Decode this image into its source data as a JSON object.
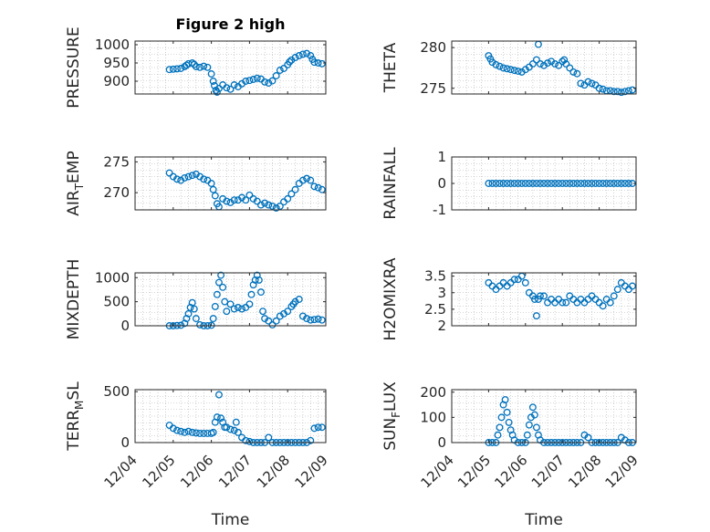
{
  "figure": {
    "title": "Figure 2 high",
    "xlabel": "Time"
  },
  "colors": {
    "series": "#0072BD",
    "axis": "#262626",
    "grid": "#b0b0b0"
  },
  "chart_data": [
    {
      "type": "scatter",
      "ylabel": "PRESSURE",
      "title": "Figure 2 high",
      "marker": "circle",
      "grid": "minor dotted",
      "xlim": [
        "12/04",
        "12/09"
      ],
      "ylim": [
        865,
        1010
      ],
      "yticks": [
        "900",
        "950",
        "1000"
      ],
      "x": [
        4.9,
        5.0,
        5.1,
        5.2,
        5.3,
        5.35,
        5.4,
        5.5,
        5.55,
        5.6,
        5.7,
        5.8,
        5.9,
        6.0,
        6.05,
        6.08,
        6.12,
        6.15,
        6.2,
        6.3,
        6.4,
        6.5,
        6.6,
        6.7,
        6.8,
        6.9,
        7.0,
        7.1,
        7.2,
        7.3,
        7.4,
        7.5,
        7.6,
        7.7,
        7.8,
        7.9,
        8.0,
        8.05,
        8.1,
        8.2,
        8.3,
        8.4,
        8.5,
        8.6,
        8.65,
        8.7,
        8.8,
        8.9
      ],
      "y": [
        932,
        933,
        934,
        935,
        940,
        944,
        948,
        950,
        946,
        940,
        938,
        941,
        938,
        920,
        900,
        888,
        875,
        870,
        880,
        890,
        882,
        878,
        890,
        885,
        893,
        900,
        902,
        905,
        908,
        906,
        898,
        895,
        901,
        915,
        930,
        935,
        945,
        953,
        958,
        965,
        970,
        974,
        976,
        970,
        960,
        952,
        950,
        948
      ]
    },
    {
      "type": "scatter",
      "ylabel": "THETA",
      "marker": "circle",
      "grid": "minor dotted",
      "xlim": [
        "12/04",
        "12/09"
      ],
      "ylim": [
        274.3,
        280.8
      ],
      "yticks": [
        "275",
        "280"
      ],
      "x": [
        5.0,
        5.05,
        5.1,
        5.2,
        5.3,
        5.4,
        5.5,
        5.6,
        5.7,
        5.8,
        5.9,
        6.0,
        6.1,
        6.2,
        6.3,
        6.35,
        6.4,
        6.5,
        6.6,
        6.7,
        6.8,
        6.9,
        7.0,
        7.05,
        7.1,
        7.2,
        7.3,
        7.4,
        7.5,
        7.6,
        7.7,
        7.8,
        7.9,
        8.0,
        8.1,
        8.2,
        8.3,
        8.4,
        8.5,
        8.6,
        8.7,
        8.8,
        8.9
      ],
      "y": [
        279.0,
        278.6,
        278.2,
        277.9,
        277.7,
        277.5,
        277.4,
        277.3,
        277.2,
        277.1,
        277.0,
        277.3,
        277.6,
        278.0,
        278.5,
        280.4,
        278.0,
        277.8,
        278.1,
        278.3,
        278.0,
        277.8,
        278.3,
        278.5,
        278.0,
        277.5,
        277.0,
        276.8,
        275.6,
        275.4,
        275.8,
        275.6,
        275.4,
        275.0,
        274.9,
        274.7,
        274.7,
        274.6,
        274.6,
        274.5,
        274.6,
        274.7,
        274.8
      ]
    },
    {
      "type": "scatter",
      "ylabel": "AIR_TEMP",
      "ylabel_main": "AIR",
      "ylabel_sub": "T",
      "ylabel_rest": "EMP",
      "marker": "circle",
      "grid": "minor dotted",
      "xlim": [
        "12/04",
        "12/09"
      ],
      "ylim": [
        267.2,
        275.8
      ],
      "yticks": [
        "270",
        "275"
      ],
      "x": [
        4.9,
        5.0,
        5.1,
        5.2,
        5.3,
        5.4,
        5.5,
        5.6,
        5.7,
        5.8,
        5.9,
        6.0,
        6.05,
        6.1,
        6.15,
        6.2,
        6.3,
        6.4,
        6.5,
        6.6,
        6.7,
        6.8,
        6.9,
        7.0,
        7.1,
        7.2,
        7.3,
        7.4,
        7.5,
        7.6,
        7.7,
        7.8,
        7.9,
        8.0,
        8.1,
        8.2,
        8.3,
        8.4,
        8.5,
        8.6,
        8.7,
        8.8,
        8.9
      ],
      "y": [
        273.2,
        272.6,
        272.2,
        272.0,
        272.4,
        272.6,
        272.8,
        273.0,
        272.6,
        272.2,
        272.0,
        271.5,
        270.5,
        269.5,
        268.2,
        267.7,
        269.0,
        268.6,
        268.4,
        268.8,
        268.8,
        269.2,
        268.8,
        269.6,
        269.0,
        268.6,
        268.0,
        268.3,
        268.0,
        267.8,
        267.5,
        267.8,
        268.5,
        269.0,
        269.8,
        270.5,
        271.5,
        272.0,
        272.3,
        272.0,
        271.0,
        270.8,
        270.5
      ]
    },
    {
      "type": "scatter",
      "ylabel": "RAINFALL",
      "marker": "circle",
      "grid": "minor dotted",
      "xlim": [
        "12/04",
        "12/09"
      ],
      "ylim": [
        -1,
        1
      ],
      "yticks": [
        "-1",
        "0",
        "1"
      ],
      "x": [
        5.0,
        5.1,
        5.2,
        5.3,
        5.4,
        5.5,
        5.6,
        5.7,
        5.8,
        5.9,
        6.0,
        6.1,
        6.2,
        6.3,
        6.4,
        6.5,
        6.6,
        6.7,
        6.8,
        6.9,
        7.0,
        7.1,
        7.2,
        7.3,
        7.4,
        7.5,
        7.6,
        7.7,
        7.8,
        7.9,
        8.0,
        8.1,
        8.2,
        8.3,
        8.4,
        8.5,
        8.6,
        8.7,
        8.8,
        8.9
      ],
      "y": [
        0,
        0,
        0,
        0,
        0,
        0,
        0,
        0,
        0,
        0,
        0,
        0,
        0,
        0,
        0,
        0,
        0,
        0,
        0,
        0,
        0,
        0,
        0,
        0,
        0,
        0,
        0,
        0,
        0,
        0,
        0,
        0,
        0,
        0,
        0,
        0,
        0,
        0,
        0,
        0
      ]
    },
    {
      "type": "scatter",
      "ylabel": "MIXDEPTH",
      "marker": "circle",
      "grid": "minor dotted",
      "xlim": [
        "12/04",
        "12/09"
      ],
      "ylim": [
        0,
        1100
      ],
      "yticks": [
        "0",
        "500",
        "1000"
      ],
      "x": [
        4.9,
        5.0,
        5.1,
        5.2,
        5.3,
        5.35,
        5.4,
        5.45,
        5.5,
        5.55,
        5.6,
        5.7,
        5.8,
        5.9,
        6.0,
        6.05,
        6.1,
        6.15,
        6.2,
        6.25,
        6.3,
        6.35,
        6.4,
        6.5,
        6.6,
        6.7,
        6.8,
        6.9,
        7.0,
        7.05,
        7.1,
        7.15,
        7.2,
        7.25,
        7.3,
        7.35,
        7.4,
        7.5,
        7.6,
        7.7,
        7.8,
        7.9,
        8.0,
        8.1,
        8.15,
        8.2,
        8.3,
        8.4,
        8.5,
        8.6,
        8.7,
        8.8,
        8.9
      ],
      "y": [
        0,
        0,
        5,
        10,
        50,
        150,
        250,
        380,
        480,
        350,
        150,
        20,
        0,
        0,
        10,
        150,
        400,
        650,
        900,
        1050,
        800,
        500,
        300,
        450,
        350,
        380,
        350,
        380,
        450,
        650,
        850,
        950,
        1050,
        950,
        700,
        300,
        150,
        100,
        20,
        100,
        200,
        250,
        300,
        400,
        450,
        500,
        550,
        200,
        150,
        120,
        130,
        140,
        120
      ]
    },
    {
      "type": "scatter",
      "ylabel": "H2OMIXRA",
      "marker": "circle",
      "grid": "minor dotted",
      "xlim": [
        "12/04",
        "12/09"
      ],
      "ylim": [
        2,
        3.6
      ],
      "yticks": [
        "2",
        "2.5",
        "3",
        "3.5"
      ],
      "x": [
        5.0,
        5.1,
        5.2,
        5.3,
        5.4,
        5.5,
        5.6,
        5.7,
        5.8,
        5.9,
        6.0,
        6.1,
        6.2,
        6.25,
        6.3,
        6.35,
        6.4,
        6.5,
        6.6,
        6.7,
        6.8,
        6.9,
        7.0,
        7.1,
        7.2,
        7.3,
        7.4,
        7.5,
        7.6,
        7.7,
        7.8,
        7.9,
        8.0,
        8.1,
        8.2,
        8.3,
        8.4,
        8.5,
        8.6,
        8.7,
        8.8,
        8.9
      ],
      "y": [
        3.3,
        3.2,
        3.1,
        3.2,
        3.3,
        3.2,
        3.3,
        3.4,
        3.4,
        3.5,
        3.3,
        3.0,
        2.9,
        2.8,
        2.3,
        2.8,
        2.9,
        2.9,
        2.7,
        2.8,
        2.7,
        2.8,
        2.7,
        2.7,
        2.9,
        2.8,
        2.7,
        2.8,
        2.7,
        2.8,
        2.9,
        2.8,
        2.7,
        2.6,
        2.8,
        2.7,
        2.9,
        3.1,
        3.3,
        3.2,
        3.1,
        3.2
      ]
    },
    {
      "type": "scatter",
      "ylabel": "TERR_MSL",
      "ylabel_main": "TERR",
      "ylabel_sub": "M",
      "ylabel_rest": "SL",
      "marker": "circle",
      "grid": "minor dotted",
      "xlim": [
        "12/04",
        "12/09"
      ],
      "ylim": [
        0,
        520
      ],
      "yticks": [
        "0",
        "500"
      ],
      "xticks": [
        "12/04",
        "12/05",
        "12/06",
        "12/07",
        "12/08",
        "12/09"
      ],
      "x": [
        4.9,
        5.0,
        5.1,
        5.2,
        5.3,
        5.4,
        5.5,
        5.6,
        5.7,
        5.8,
        5.9,
        6.0,
        6.05,
        6.1,
        6.15,
        6.2,
        6.25,
        6.3,
        6.35,
        6.4,
        6.5,
        6.6,
        6.65,
        6.7,
        6.8,
        6.9,
        7.0,
        7.1,
        7.2,
        7.3,
        7.4,
        7.5,
        7.6,
        7.7,
        7.8,
        7.9,
        8.0,
        8.1,
        8.2,
        8.3,
        8.4,
        8.5,
        8.6,
        8.7,
        8.8,
        8.9
      ],
      "y": [
        170,
        140,
        120,
        110,
        100,
        110,
        100,
        95,
        90,
        90,
        90,
        90,
        100,
        200,
        250,
        470,
        240,
        200,
        150,
        150,
        130,
        120,
        200,
        100,
        50,
        20,
        10,
        0,
        0,
        0,
        0,
        50,
        0,
        0,
        0,
        0,
        0,
        0,
        0,
        0,
        0,
        0,
        20,
        140,
        150,
        150
      ]
    },
    {
      "type": "scatter",
      "ylabel": "SUN_FLUX",
      "ylabel_main": "SUN",
      "ylabel_sub": "F",
      "ylabel_rest": "LUX",
      "marker": "circle",
      "grid": "minor dotted",
      "xlim": [
        "12/04",
        "12/09"
      ],
      "ylim": [
        0,
        210
      ],
      "yticks": [
        "0",
        "100",
        "200"
      ],
      "xticks": [
        "12/04",
        "12/05",
        "12/06",
        "12/07",
        "12/08",
        "12/09"
      ],
      "x": [
        5.0,
        5.1,
        5.2,
        5.25,
        5.3,
        5.35,
        5.4,
        5.45,
        5.5,
        5.55,
        5.6,
        5.65,
        5.7,
        5.8,
        5.9,
        6.0,
        6.05,
        6.1,
        6.15,
        6.2,
        6.25,
        6.3,
        6.35,
        6.4,
        6.5,
        6.6,
        6.7,
        6.8,
        6.9,
        7.0,
        7.1,
        7.2,
        7.3,
        7.4,
        7.5,
        7.6,
        7.7,
        7.8,
        7.9,
        8.0,
        8.1,
        8.2,
        8.3,
        8.4,
        8.5,
        8.6,
        8.7,
        8.8,
        8.9
      ],
      "y": [
        0,
        0,
        0,
        30,
        60,
        100,
        150,
        170,
        120,
        80,
        50,
        30,
        10,
        0,
        0,
        0,
        30,
        70,
        100,
        140,
        110,
        60,
        30,
        10,
        0,
        0,
        0,
        0,
        0,
        0,
        0,
        0,
        0,
        0,
        0,
        30,
        20,
        0,
        0,
        0,
        0,
        0,
        0,
        0,
        0,
        20,
        10,
        0,
        0
      ]
    }
  ]
}
